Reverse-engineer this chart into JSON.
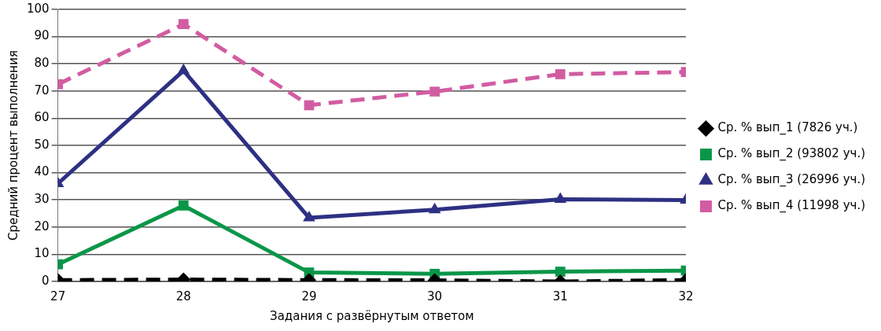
{
  "chart_data": {
    "type": "line",
    "xlabel": "Задания с развёрнутым ответом",
    "ylabel": "Средний процент выполнения",
    "x": [
      27,
      28,
      29,
      30,
      31,
      32
    ],
    "xlim": [
      27,
      32
    ],
    "xticks": [
      27,
      28,
      29,
      30,
      31,
      32
    ],
    "ylim": [
      0,
      100
    ],
    "yticks": [
      0,
      10,
      20,
      30,
      40,
      50,
      60,
      70,
      80,
      90,
      100
    ],
    "grid": "y",
    "legend": "right",
    "series": [
      {
        "name": "Ср. % вып_1 (7826 уч.)",
        "color": "#000000",
        "marker": "diamond",
        "line_style": "dashed",
        "values": [
          0.5,
          0.7,
          0.5,
          0.4,
          0,
          0.5
        ]
      },
      {
        "name": "Ср. % вып_2 (93802 уч.)",
        "color": "#0a9648",
        "marker": "square",
        "line_style": "solid",
        "values": [
          6.3,
          27.9,
          3.3,
          2.8,
          3.6,
          4
        ]
      },
      {
        "name": "Ср. % вып_3 (26996 уч.)",
        "color": "#2e3083",
        "marker": "triangle",
        "line_style": "solid",
        "values": [
          36,
          77.5,
          23.4,
          26.4,
          30.2,
          29.9
        ]
      },
      {
        "name": "Ср. % вып_4 (11998 уч.)",
        "color": "#d25ca2",
        "marker": "square",
        "line_style": "dashed",
        "values": [
          72.5,
          94.6,
          64.8,
          69.8,
          76.2,
          77
        ]
      }
    ]
  }
}
